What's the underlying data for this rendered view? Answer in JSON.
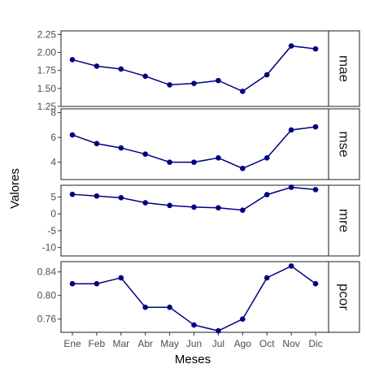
{
  "chart_data": {
    "type": "line",
    "facet": "vertical panels, shared x axis, strip labels on right",
    "xlabel": "Meses",
    "ylabel": "Valores",
    "categories": [
      "Ene",
      "Feb",
      "Mar",
      "Abr",
      "May",
      "Jun",
      "Jul",
      "Ago",
      "Oct",
      "Nov",
      "Dic"
    ],
    "line_color": "#000080",
    "grid": false,
    "panels": [
      {
        "name": "mae",
        "ylim": [
          1.25,
          2.3
        ],
        "yticks": [
          1.25,
          1.5,
          1.75,
          2.0,
          2.25
        ],
        "ytick_labels": [
          "1.25",
          "1.50",
          "1.75",
          "2.00",
          "2.25"
        ],
        "values": [
          1.9,
          1.81,
          1.77,
          1.67,
          1.55,
          1.57,
          1.61,
          1.46,
          1.69,
          2.09,
          2.05
        ]
      },
      {
        "name": "mse",
        "ylim": [
          2.6,
          8.3
        ],
        "yticks": [
          4,
          6,
          8
        ],
        "ytick_labels": [
          "4",
          "6",
          "8"
        ],
        "values": [
          6.2,
          5.5,
          5.15,
          4.65,
          4.0,
          4.0,
          4.35,
          3.5,
          4.35,
          6.6,
          6.85
        ]
      },
      {
        "name": "mre",
        "ylim": [
          -12.5,
          8.5
        ],
        "yticks": [
          -10,
          -5,
          0,
          5
        ],
        "ytick_labels": [
          "-10",
          "-5",
          "0",
          "5"
        ],
        "values": [
          5.8,
          5.3,
          4.8,
          3.3,
          2.5,
          2.0,
          1.8,
          1.1,
          5.7,
          7.9,
          7.2
        ]
      },
      {
        "name": "pcor",
        "ylim": [
          0.7375,
          0.8575
        ],
        "yticks": [
          0.76,
          0.8,
          0.84
        ],
        "ytick_labels": [
          "0.76",
          "0.80",
          "0.84"
        ],
        "values": [
          0.82,
          0.82,
          0.83,
          0.78,
          0.78,
          0.75,
          0.74,
          0.76,
          0.83,
          0.85,
          0.82
        ]
      }
    ]
  }
}
